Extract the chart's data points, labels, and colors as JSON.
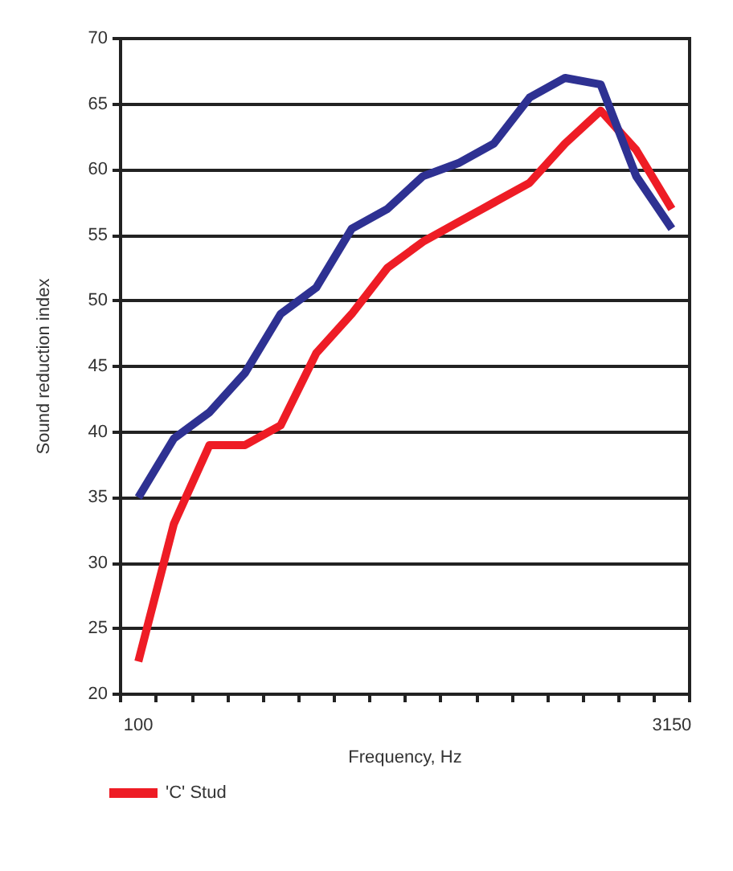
{
  "chart_data": {
    "type": "line",
    "xlabel": "Frequency, Hz",
    "ylabel": "Sound reduction index",
    "categories": [
      "100",
      null,
      null,
      null,
      null,
      null,
      null,
      null,
      null,
      null,
      null,
      null,
      null,
      null,
      null,
      "3150"
    ],
    "ylim": [
      20,
      70
    ],
    "yticks": [
      20,
      25,
      30,
      35,
      40,
      45,
      50,
      55,
      60,
      65,
      70
    ],
    "grid": "y",
    "legend": "bottom left",
    "marker": "none",
    "line_style": "solid",
    "series": [
      {
        "name": "'C' Stud",
        "color": "#ee1c25",
        "values": [
          22.5,
          33,
          39,
          39,
          40.5,
          46,
          49,
          52.5,
          54.5,
          56,
          57.5,
          59,
          62,
          64.5,
          61.5,
          57
        ]
      },
      {
        "color": "#2e3192",
        "values": [
          35,
          39.5,
          41.5,
          44.5,
          49,
          51,
          55.5,
          57,
          59.5,
          60.5,
          62,
          65.5,
          67,
          66.5,
          59.5,
          55.5
        ]
      }
    ]
  }
}
